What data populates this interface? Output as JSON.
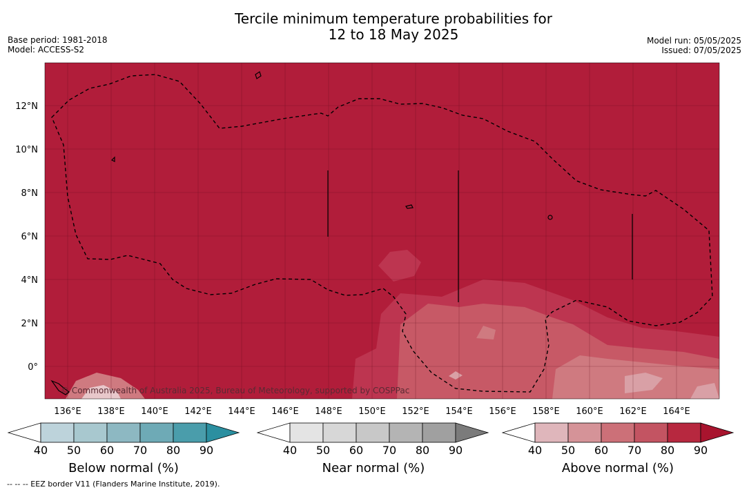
{
  "title": {
    "line1": "Tercile minimum temperature probabilities for",
    "line2": "12 to 18 May 2025"
  },
  "meta": {
    "base_period": "Base period: 1981-2018",
    "model": "Model: ACCESS-S2",
    "model_run": "Model run: 05/05/2025",
    "issued": "Issued: 07/05/2025"
  },
  "map": {
    "lat_labels": [
      "12°N",
      "10°N",
      "8°N",
      "6°N",
      "4°N",
      "2°N",
      "0°"
    ],
    "lon_labels": [
      "136°E",
      "138°E",
      "140°E",
      "142°E",
      "144°E",
      "146°E",
      "148°E",
      "150°E",
      "152°E",
      "154°E",
      "156°E",
      "158°E",
      "160°E",
      "162°E",
      "164°E"
    ],
    "credit": "© Commonwealth of Australia 2025, Bureau of Meteorology, supported by COSPPac",
    "colors": {
      "above90": "#b11d3a",
      "above80": "#bd3550",
      "above70": "#c75966",
      "above60": "#cf7a80",
      "above50": "#d9a0a6"
    }
  },
  "colorbars": [
    {
      "title": "Below normal (%)",
      "ticks": [
        "40",
        "50",
        "60",
        "70",
        "80",
        "90"
      ],
      "colors": [
        "#bdd3db",
        "#a8c8cf",
        "#8db8c2",
        "#6eaab6",
        "#4a9dab",
        "#2b8fa0"
      ]
    },
    {
      "title": "Near normal (%)",
      "ticks": [
        "40",
        "50",
        "60",
        "70",
        "80",
        "90"
      ],
      "colors": [
        "#e4e4e4",
        "#d7d7d7",
        "#c8c8c8",
        "#b4b4b4",
        "#a0a0a0",
        "#7b7b7b"
      ]
    },
    {
      "title": "Above normal (%)",
      "ticks": [
        "40",
        "50",
        "60",
        "70",
        "80",
        "90"
      ],
      "colors": [
        "#dfb6bb",
        "#d59398",
        "#cc7078",
        "#c35462",
        "#b7283f",
        "#a8142e"
      ]
    }
  ],
  "footnote": "--  --  -- EEZ border V11 (Flanders Marine Institute, 2019)."
}
